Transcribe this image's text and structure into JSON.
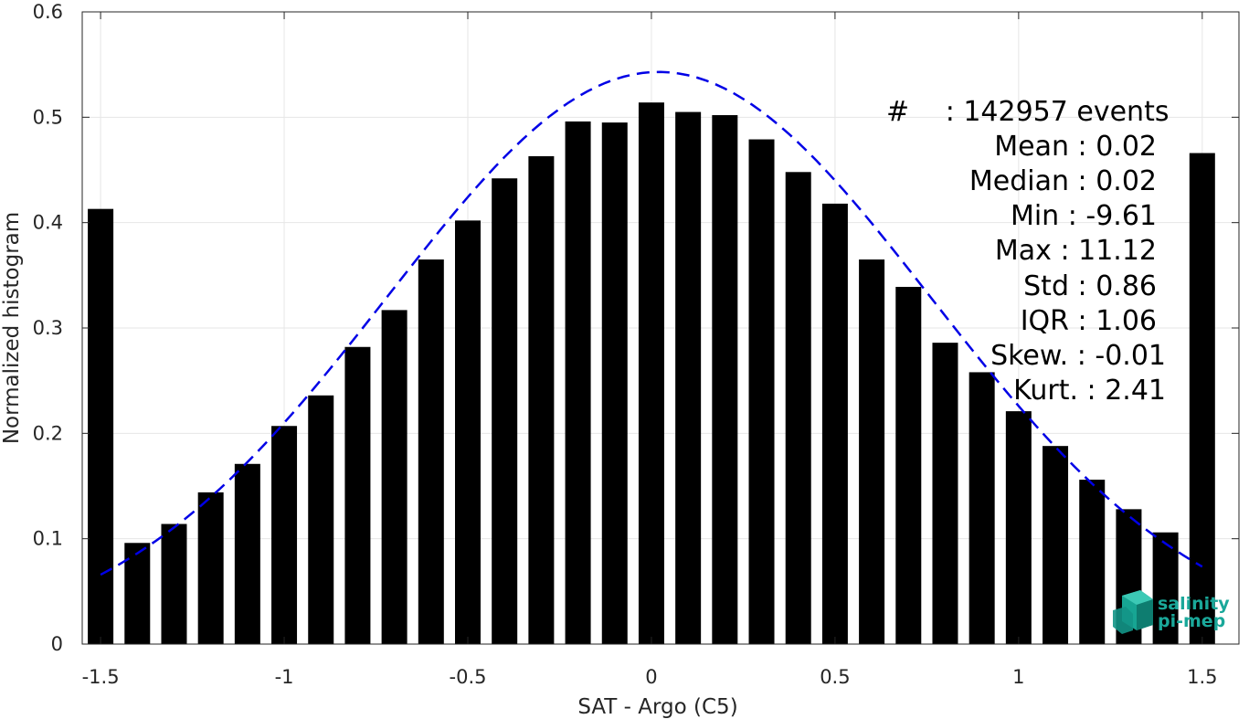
{
  "chart_data": {
    "type": "bar",
    "xlabel": "SAT - Argo (C5)",
    "ylabel": "Normalized histogram",
    "xlim": [
      -1.55,
      1.6
    ],
    "ylim": [
      0,
      0.6
    ],
    "xticks": [
      -1.5,
      -1,
      -0.5,
      0,
      0.5,
      1,
      1.5
    ],
    "xtick_labels": [
      "-1.5",
      "-1",
      "-0.5",
      "0",
      "0.5",
      "1",
      "1.5"
    ],
    "yticks": [
      0,
      0.1,
      0.2,
      0.3,
      0.4,
      0.5,
      0.6
    ],
    "ytick_labels": [
      "0",
      "0.1",
      "0.2",
      "0.3",
      "0.4",
      "0.5",
      "0.6"
    ],
    "grid": true,
    "bar_color": "#000000",
    "bars": {
      "x": [
        -1.5,
        -1.4,
        -1.3,
        -1.2,
        -1.1,
        -1.0,
        -0.9,
        -0.8,
        -0.7,
        -0.6,
        -0.5,
        -0.4,
        -0.3,
        -0.2,
        -0.1,
        0.0,
        0.1,
        0.2,
        0.3,
        0.4,
        0.5,
        0.6,
        0.7,
        0.8,
        0.9,
        1.0,
        1.1,
        1.2,
        1.3,
        1.4,
        1.5
      ],
      "values": [
        0.413,
        0.096,
        0.114,
        0.144,
        0.171,
        0.207,
        0.236,
        0.282,
        0.317,
        0.365,
        0.402,
        0.442,
        0.463,
        0.496,
        0.495,
        0.514,
        0.505,
        0.502,
        0.479,
        0.448,
        0.418,
        0.365,
        0.339,
        0.286,
        0.258,
        0.221,
        0.188,
        0.156,
        0.128,
        0.106,
        0.466
      ]
    },
    "fit_curve": {
      "style": "dashed",
      "color": "#0000e6",
      "mean": 0.02,
      "std": 0.74,
      "peak": 0.543,
      "x_range": [
        -1.5,
        1.5
      ]
    },
    "annotations": [
      {
        "label": "#",
        "value": ": 142957 events"
      },
      {
        "label": "Mean",
        "value": ": 0.02"
      },
      {
        "label": "Median",
        "value": ": 0.02"
      },
      {
        "label": "Min",
        "value": ": -9.61"
      },
      {
        "label": "Max",
        "value": ": 11.12"
      },
      {
        "label": "Std",
        "value": ": 0.86"
      },
      {
        "label": "IQR",
        "value": ": 1.06"
      },
      {
        "label": "Skew.",
        "value": ": -0.01"
      },
      {
        "label": "Kurt.",
        "value": ": 2.41"
      }
    ]
  },
  "logo": {
    "line1": "salinity",
    "line2": "pi-mep",
    "color": "#1aa89a"
  }
}
